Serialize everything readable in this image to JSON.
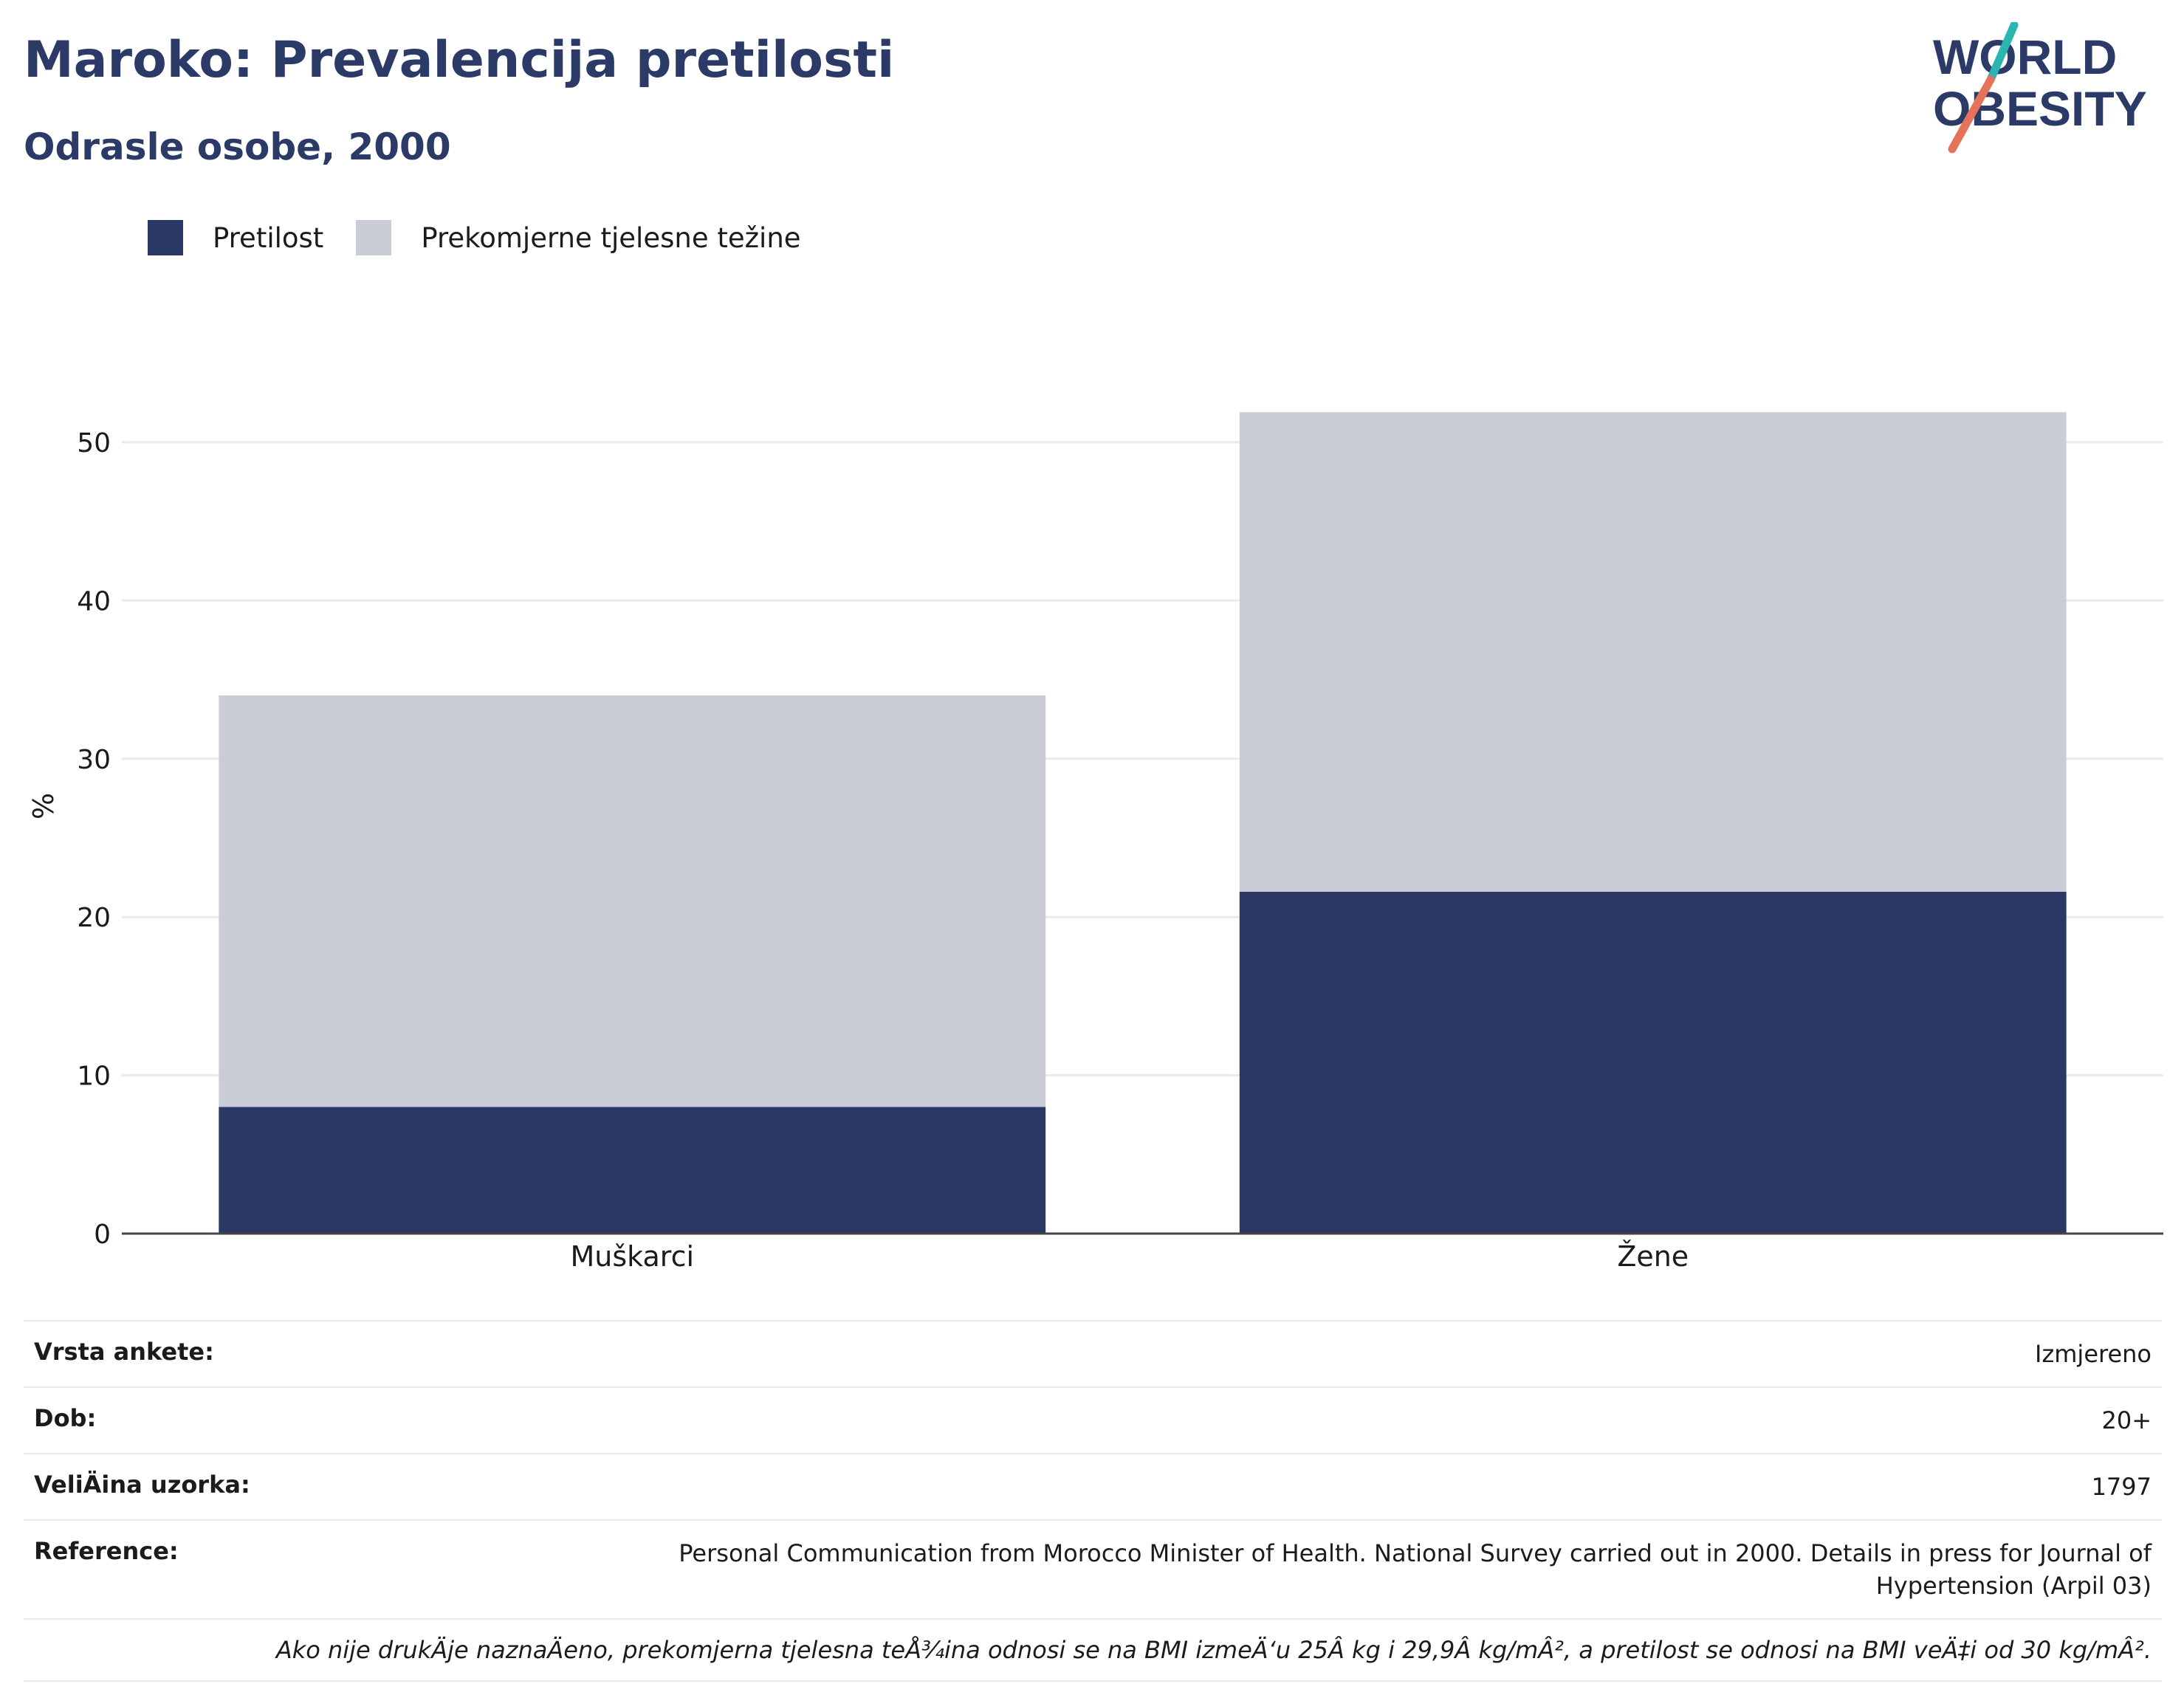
{
  "header": {
    "title": "Maroko: Prevalencija pretilosti",
    "subtitle": "Odrasle osobe, 2000"
  },
  "logo": {
    "line1": "WORLD",
    "line2": "OBESITY",
    "colors": {
      "text": "#2b3a67",
      "slash_top": "#2bb5b0",
      "slash_bottom": "#e5735c"
    }
  },
  "legend": {
    "items": [
      {
        "label": "Pretilost",
        "color": "#2b3765"
      },
      {
        "label": "Prekomjerne tjelesne težine",
        "color": "#cacdd8"
      }
    ]
  },
  "chart_data": {
    "type": "bar",
    "stacked": true,
    "categories": [
      "Muškarci",
      "Žene"
    ],
    "series": [
      {
        "name": "Pretilost",
        "values": [
          8.0,
          21.6
        ],
        "color": "#2b3765"
      },
      {
        "name": "Prekomjerne tjelesne težine",
        "values": [
          26.0,
          30.3
        ],
        "color": "#cacdd8"
      }
    ],
    "ylabel": "%",
    "ylim": [
      0,
      55
    ],
    "yticks": [
      0,
      10,
      20,
      30,
      40,
      50
    ],
    "grid": true,
    "legend_position": "top-left"
  },
  "info": {
    "rows": [
      {
        "key": "Vrsta ankete:",
        "value": "Izmjereno"
      },
      {
        "key": "Dob:",
        "value": "20+"
      },
      {
        "key": "VeliÄ\bina uzorka:",
        "value": "1797"
      },
      {
        "key": "Reference:",
        "value": "Personal Communication from Morocco Minister of Health. National Survey carried out in 2000. Details in press for Journal of Hypertension (Arpil 03)"
      }
    ],
    "note": "Ako nije drukÄ\bje naznaÄ\beno, prekomjerna tjelesna teÅ¾ina odnosi se na BMI izmeÄ‘u 25Â kg i 29,9Â kg/mÂ², a pretilost se odnosi na BMI veÄ‡i od 30 kg/mÂ²."
  }
}
